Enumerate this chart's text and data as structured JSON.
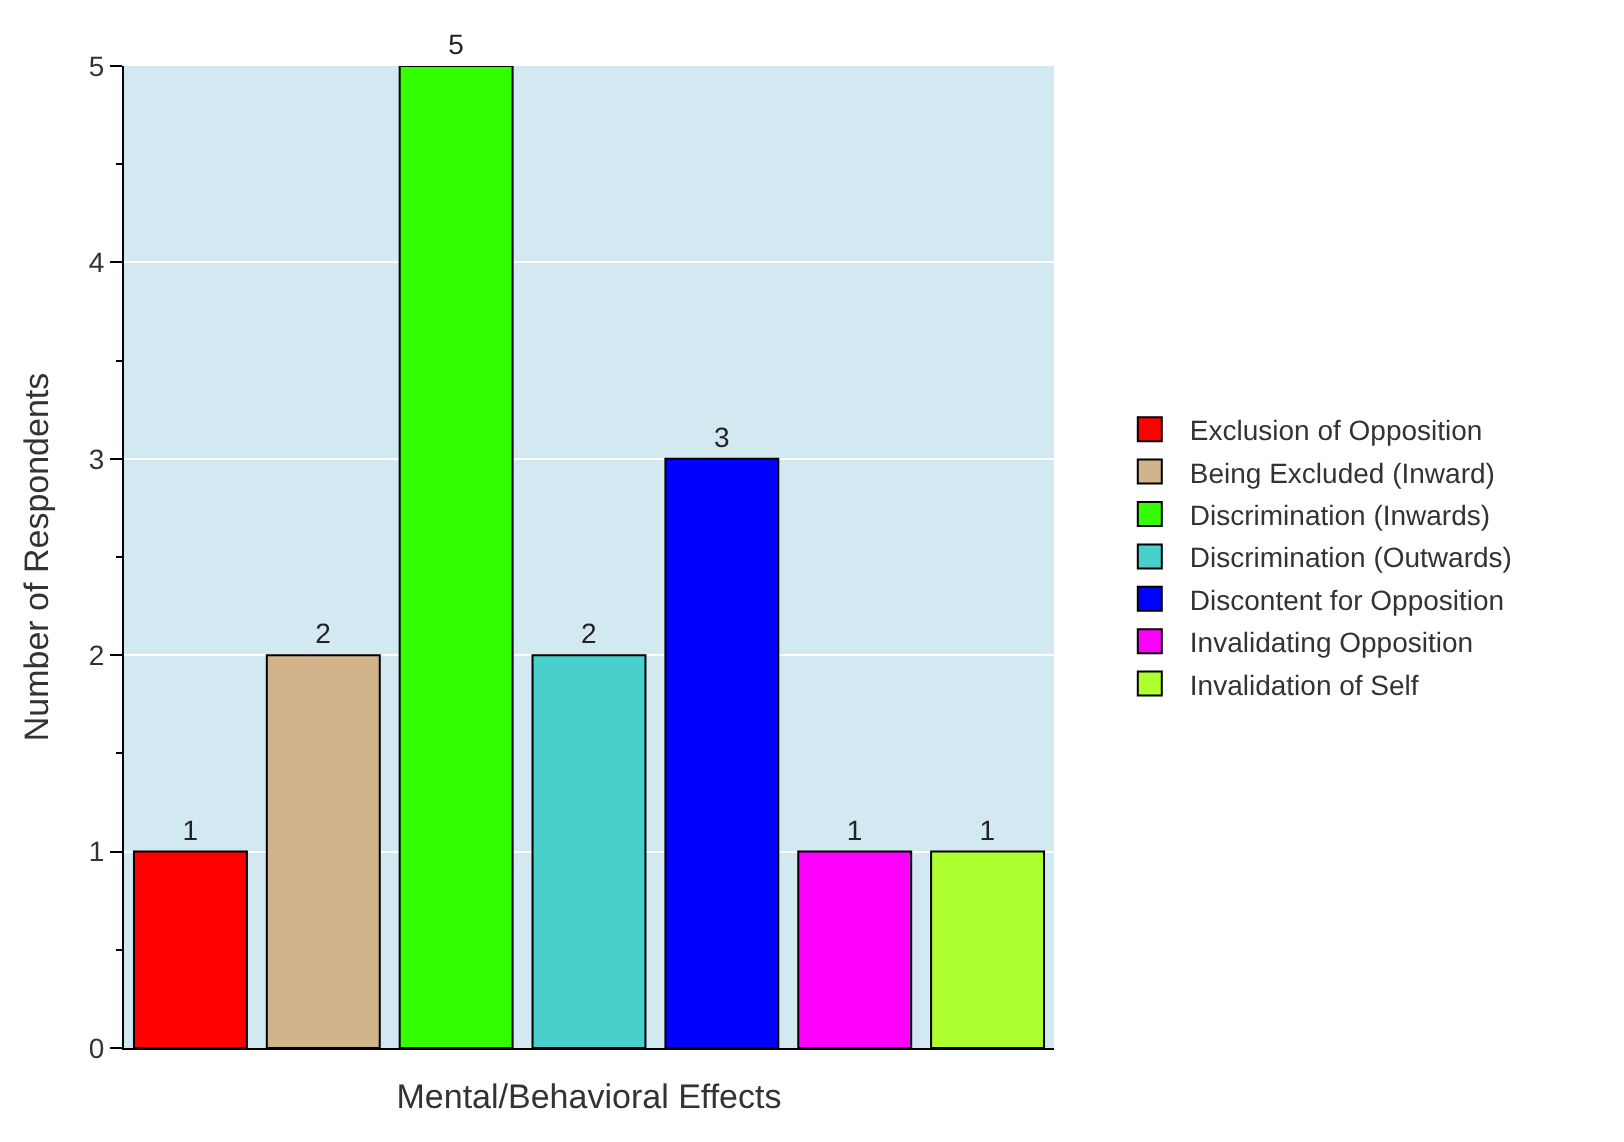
{
  "chart_data": {
    "type": "bar",
    "xlabel": "Mental/Behavioral Effects",
    "ylabel": "Number of Respondents",
    "categories": [
      null,
      null,
      null,
      null,
      null,
      null,
      null
    ],
    "series": [
      {
        "name": "Exclusion of Opposition",
        "color": "#ff0000",
        "values": [
          1,
          null,
          null,
          null,
          null,
          null,
          null
        ]
      },
      {
        "name": "Being Excluded (Inward)",
        "color": "#d2b48c",
        "values": [
          null,
          2,
          null,
          null,
          null,
          null,
          null
        ]
      },
      {
        "name": "Discrimination (Inwards)",
        "color": "#33ff00",
        "values": [
          null,
          null,
          5,
          null,
          null,
          null,
          null
        ]
      },
      {
        "name": "Discrimination (Outwards)",
        "color": "#48d1cc",
        "values": [
          null,
          null,
          null,
          2,
          null,
          null,
          null
        ]
      },
      {
        "name": "Discontent for Opposition",
        "color": "#0000ff",
        "values": [
          null,
          null,
          null,
          null,
          3,
          null,
          null
        ]
      },
      {
        "name": "Invalidating Opposition",
        "color": "#ff00ff",
        "values": [
          null,
          null,
          null,
          null,
          null,
          1,
          null
        ]
      },
      {
        "name": "Invalidation of Self",
        "color": "#adff2f",
        "values": [
          null,
          null,
          null,
          null,
          null,
          null,
          1
        ]
      }
    ],
    "ylim": [
      0,
      5
    ],
    "yticks": [
      0,
      1,
      2,
      3,
      4,
      5
    ],
    "grid": "y",
    "legend": "right",
    "tick_labels": "y",
    "data_labels": true
  }
}
